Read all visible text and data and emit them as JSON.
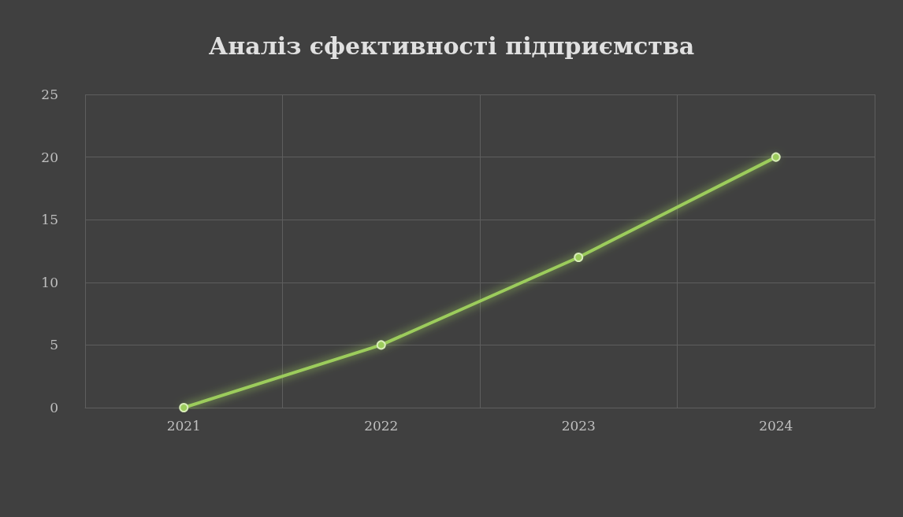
{
  "chart_data": {
    "type": "line",
    "title": "Аналіз єфективності підприємства",
    "categories": [
      "2021",
      "2022",
      "2023",
      "2024"
    ],
    "series": [
      {
        "color": "#9ccc5c",
        "values": [
          0,
          5,
          12,
          20
        ]
      }
    ],
    "ylim": [
      0,
      25
    ],
    "yticks": [
      0,
      5,
      10,
      15,
      20,
      25
    ],
    "grid": true,
    "marker": "circle",
    "line_style": "solid"
  }
}
